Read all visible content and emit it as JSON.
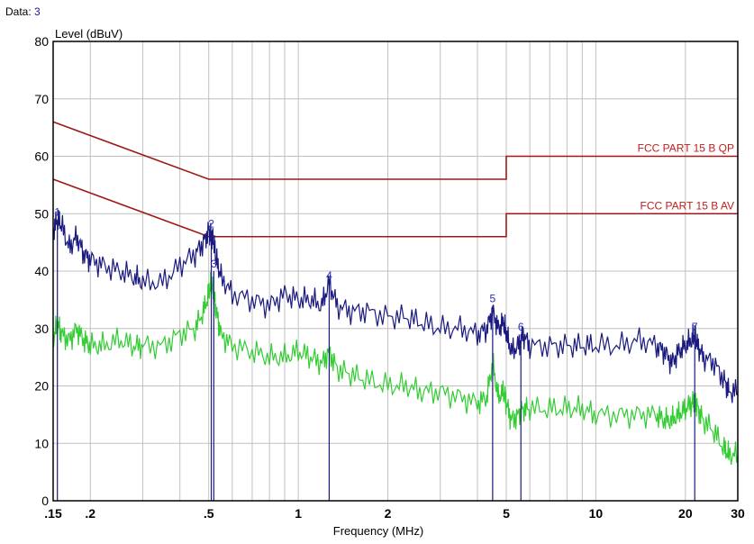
{
  "header": {
    "label": "Data:",
    "value": "3"
  },
  "chart_data": {
    "type": "line",
    "ylabel": "Level (dBuV)",
    "xlabel": "Frequency (MHz)",
    "x_scale": "log",
    "xlim": [
      0.15,
      30
    ],
    "ylim": [
      0,
      80
    ],
    "y_ticks": [
      "0",
      "10",
      "20",
      "30",
      "40",
      "50",
      "60",
      "70",
      "80"
    ],
    "x_ticks": [
      {
        "value": 0.15,
        "label": ".15"
      },
      {
        "value": 0.2,
        "label": ".2"
      },
      {
        "value": 0.5,
        "label": ".5"
      },
      {
        "value": 1,
        "label": "1"
      },
      {
        "value": 2,
        "label": "2"
      },
      {
        "value": 5,
        "label": "5"
      },
      {
        "value": 10,
        "label": "10"
      },
      {
        "value": 20,
        "label": "20"
      },
      {
        "value": 30,
        "label": "30"
      }
    ],
    "grid": true,
    "limits": [
      {
        "name": "FCC PART 15 B QP",
        "color": "#a01818",
        "x": [
          0.15,
          0.5,
          0.5,
          5,
          5,
          30
        ],
        "y": [
          66,
          56,
          56,
          56,
          60,
          60
        ]
      },
      {
        "name": "FCC PART 15 B AV",
        "color": "#a01818",
        "x": [
          0.15,
          0.5,
          0.5,
          5,
          5,
          30
        ],
        "y": [
          56,
          46,
          46,
          46,
          50,
          50
        ]
      }
    ],
    "series": [
      {
        "color": "#1a1a80",
        "x": [
          0.15,
          0.155,
          0.16,
          0.17,
          0.18,
          0.19,
          0.2,
          0.22,
          0.25,
          0.28,
          0.3,
          0.35,
          0.4,
          0.45,
          0.48,
          0.5,
          0.51,
          0.52,
          0.53,
          0.55,
          0.6,
          0.7,
          0.8,
          0.9,
          1.0,
          1.1,
          1.2,
          1.27,
          1.35,
          1.5,
          1.7,
          2.0,
          2.3,
          2.6,
          3.0,
          3.5,
          4.0,
          4.3,
          4.5,
          4.7,
          4.9,
          5.0,
          5.2,
          5.5,
          5.7,
          6.0,
          7.0,
          8.0,
          9.0,
          10.0,
          12.0,
          14.0,
          16.0,
          17.0,
          18.0,
          19.0,
          20.0,
          21.0,
          21.5,
          22.0,
          23.0,
          25.0,
          27.0,
          28.0,
          30.0
        ],
        "y": [
          47,
          49,
          48,
          44,
          46,
          43,
          42,
          41,
          40,
          39,
          38,
          38,
          41,
          43,
          45,
          47,
          46,
          45,
          42,
          39,
          36,
          35,
          34,
          36,
          35,
          35,
          34,
          38,
          34,
          33,
          33,
          32,
          32,
          31,
          30,
          30,
          29,
          30,
          33,
          30,
          31,
          29,
          26,
          27,
          29,
          27,
          27,
          27,
          27,
          27,
          27,
          28,
          27,
          26,
          24,
          26,
          27,
          28,
          29,
          27,
          25,
          24,
          21,
          19,
          19
        ]
      },
      {
        "color": "#33cc33",
        "x": [
          0.15,
          0.155,
          0.16,
          0.17,
          0.18,
          0.19,
          0.2,
          0.22,
          0.25,
          0.28,
          0.3,
          0.35,
          0.4,
          0.45,
          0.48,
          0.5,
          0.51,
          0.52,
          0.53,
          0.55,
          0.6,
          0.7,
          0.8,
          0.9,
          1.0,
          1.1,
          1.2,
          1.27,
          1.35,
          1.5,
          1.7,
          2.0,
          2.3,
          2.6,
          3.0,
          3.5,
          4.0,
          4.3,
          4.5,
          4.7,
          4.9,
          5.0,
          5.2,
          5.5,
          5.7,
          6.0,
          7.0,
          8.0,
          9.0,
          10.0,
          12.0,
          14.0,
          16.0,
          17.0,
          18.0,
          19.0,
          20.0,
          21.0,
          21.5,
          22.0,
          23.0,
          25.0,
          27.0,
          28.0,
          30.0
        ],
        "y": [
          28,
          31,
          29,
          28,
          30,
          28,
          27,
          27,
          28,
          27,
          27,
          27,
          29,
          30,
          33,
          36,
          38,
          36,
          33,
          29,
          27,
          26,
          25,
          25,
          26,
          25,
          24,
          26,
          23,
          22,
          21,
          20,
          20,
          19,
          19,
          18,
          17,
          18,
          24,
          18,
          19,
          17,
          14,
          15,
          16,
          16,
          16,
          16,
          16,
          15,
          15,
          15,
          15,
          14,
          14,
          15,
          16,
          17,
          18,
          16,
          14,
          12,
          9,
          8,
          8
        ]
      }
    ],
    "markers": [
      {
        "label": "1",
        "x": 0.155,
        "y": 49
      },
      {
        "label": "2",
        "x": 0.51,
        "y": 47
      },
      {
        "label": "3",
        "x": 0.52,
        "y": 40
      },
      {
        "label": "4",
        "x": 1.27,
        "y": 38
      },
      {
        "label": "5",
        "x": 4.5,
        "y": 34
      },
      {
        "label": "6",
        "x": 5.6,
        "y": 29
      },
      {
        "label": "7",
        "x": 21.5,
        "y": 29
      }
    ],
    "marker_color": "#1a1a80"
  }
}
